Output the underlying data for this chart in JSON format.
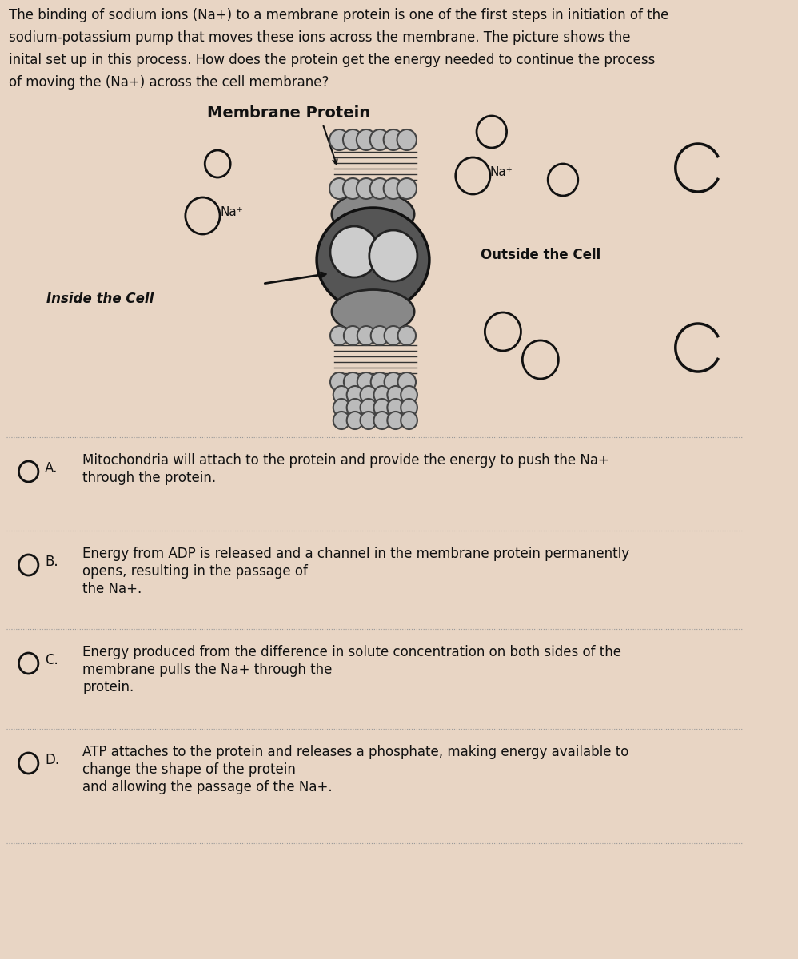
{
  "background_color": "#e8d5c4",
  "question_text_lines": [
    "The binding of sodium ions (Na+) to a membrane protein is one of the first steps in initiation of the",
    "sodium-potassium pump that moves these ions across the membrane. The picture shows the",
    "inital set up in this process. How does the protein get the energy needed to continue the process",
    "of moving the (Na+) across the cell membrane?"
  ],
  "diagram_title": "Membrane Protein",
  "inside_label": "Inside the Cell",
  "outside_label": "Outside the Cell",
  "na_label": "Na⁺",
  "options": [
    {
      "letter": "A.",
      "text_lines": [
        "Mitochondria will attach to the protein and provide the energy to push the Na+",
        "through the protein."
      ]
    },
    {
      "letter": "B.",
      "text_lines": [
        "Energy from ADP is released and a channel in the membrane protein permanently",
        "opens, resulting in the passage of",
        "the Na+."
      ]
    },
    {
      "letter": "C.",
      "text_lines": [
        "Energy produced from the difference in solute concentration on both sides of the",
        "membrane pulls the Na+ through the",
        "protein."
      ]
    },
    {
      "letter": "D.",
      "text_lines": [
        "ATP attaches to the protein and releases a phosphate, making energy available to",
        "change the shape of the protein",
        "and allowing the passage of the Na+."
      ]
    }
  ],
  "text_color": "#111111",
  "divider_color": "#999999"
}
